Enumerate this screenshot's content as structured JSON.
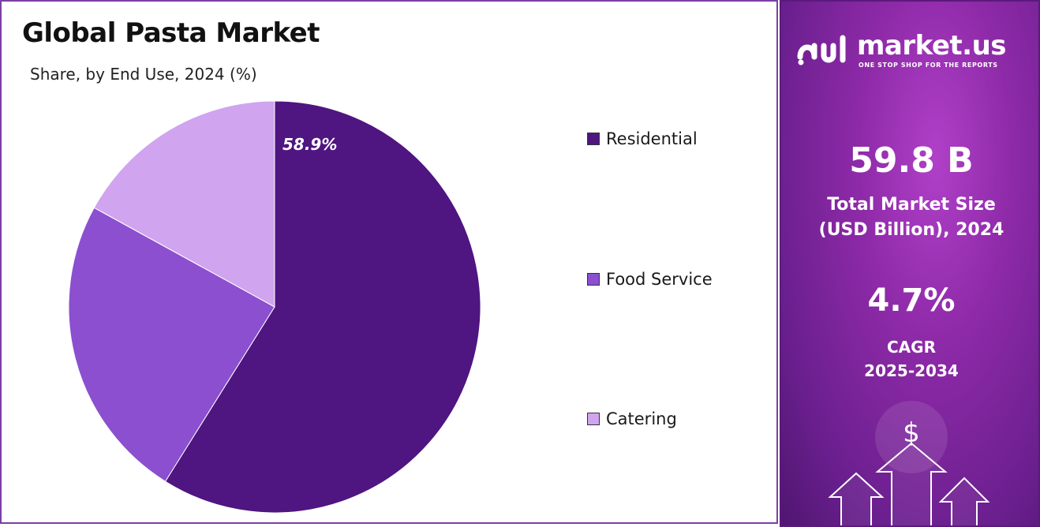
{
  "chart_data": {
    "type": "pie",
    "title": "Global Pasta Market",
    "subtitle": "Share, by End Use, 2024 (%)",
    "slices": [
      {
        "name": "Residential",
        "value": 58.9,
        "color": "#4f1580",
        "label": "58.9%"
      },
      {
        "name": "Food Service",
        "value": 24.1,
        "color": "#8b4fd0",
        "label": ""
      },
      {
        "name": "Catering",
        "value": 17.0,
        "color": "#d0a4ef",
        "label": ""
      }
    ],
    "legend_position": "right"
  },
  "brand": {
    "name": "market.us",
    "tagline": "ONE STOP SHOP FOR THE REPORTS"
  },
  "stats": {
    "market_size_value": "59.8 B",
    "market_size_label_line1": "Total Market Size",
    "market_size_label_line2": "(USD Billion), 2024",
    "cagr_value": "4.7%",
    "cagr_label_line1": "CAGR",
    "cagr_label_line2": "2025-2034"
  },
  "decor": {
    "currency_symbol": "$"
  }
}
